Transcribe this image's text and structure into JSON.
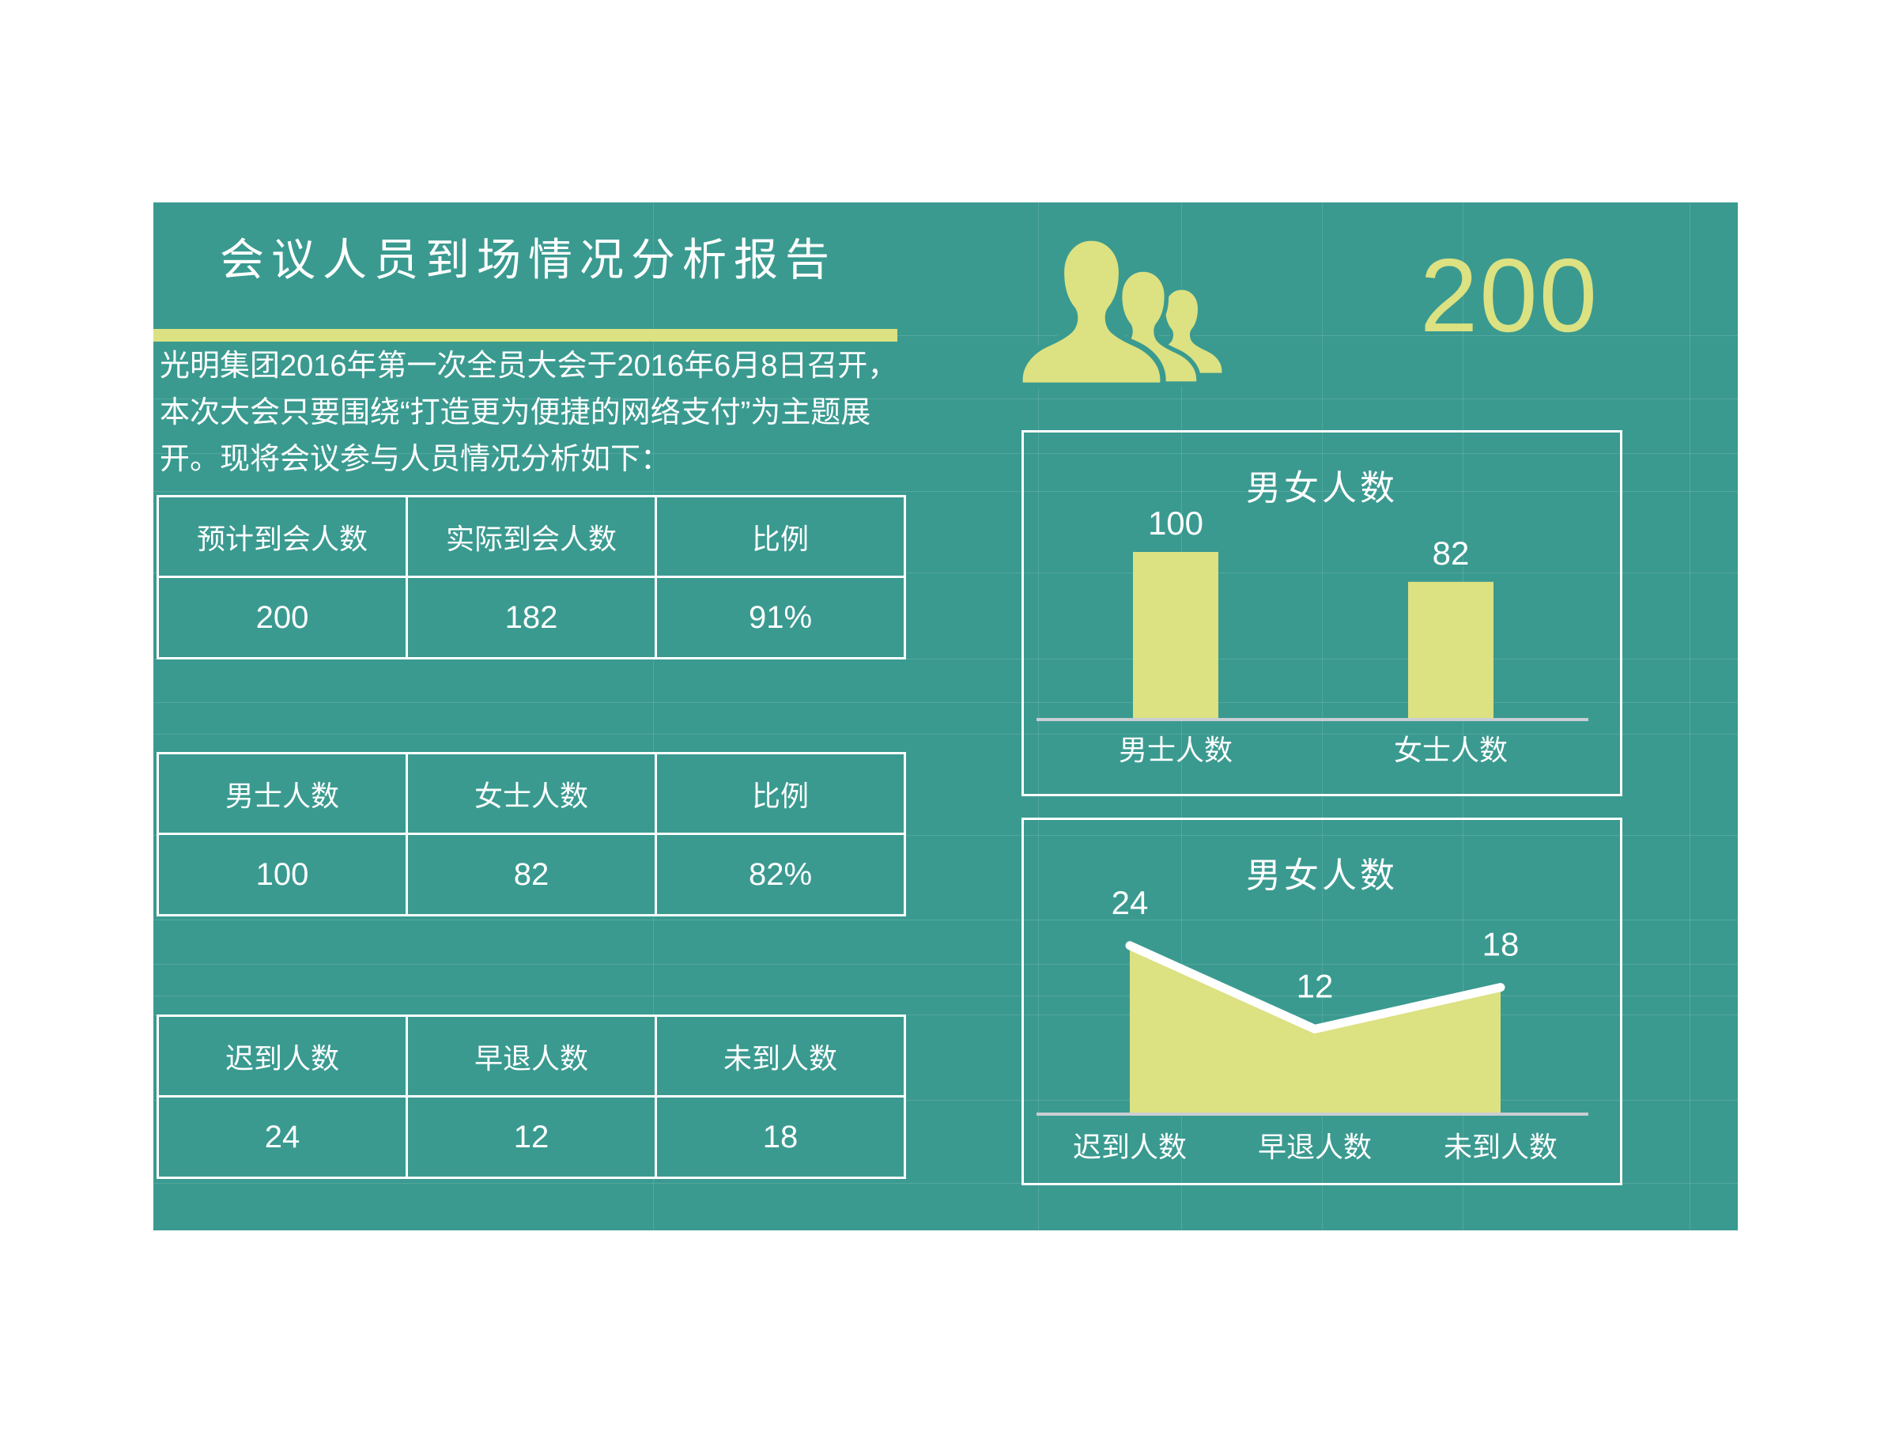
{
  "header": {
    "title": "会议人员到场情况分析报告",
    "intro": "光明集团2016年第一次全员大会于2016年6月8日召开，本次大会只要围绕“打造更为便捷的网络支付”为主题展开。现将会议参与人员情况分析如下：",
    "headline_number": "200"
  },
  "colors": {
    "panel_background": "#3a9a90",
    "accent": "#dce181",
    "text": "#ffffff",
    "axis": "#c9ced3"
  },
  "icons": {
    "people_group": "people-group-icon"
  },
  "tables": [
    {
      "headers": [
        "预计到会人数",
        "实际到会人数",
        "比例"
      ],
      "values": [
        "200",
        "182",
        "91%"
      ]
    },
    {
      "headers": [
        "男士人数",
        "女士人数",
        "比例"
      ],
      "values": [
        "100",
        "82",
        "82%"
      ]
    },
    {
      "headers": [
        "迟到人数",
        "早退人数",
        "未到人数"
      ],
      "values": [
        "24",
        "12",
        "18"
      ]
    }
  ],
  "chart_data": [
    {
      "type": "bar",
      "title": "男女人数",
      "categories": [
        "男士人数",
        "女士人数"
      ],
      "values": [
        100,
        82
      ],
      "ylim": [
        0,
        120
      ],
      "grid": false,
      "legend": "none",
      "bar_color": "#dce181",
      "label_color": "#ffffff",
      "axis_color": "#c9ced3"
    },
    {
      "type": "area",
      "title": "男女人数",
      "categories": [
        "迟到人数",
        "早退人数",
        "未到人数"
      ],
      "values": [
        24,
        12,
        18
      ],
      "ylim": [
        0,
        30
      ],
      "grid": false,
      "legend": "none",
      "fill_color": "#dce181",
      "line_color": "#ffffff",
      "label_color": "#ffffff",
      "axis_color": "#c9ced3"
    }
  ]
}
